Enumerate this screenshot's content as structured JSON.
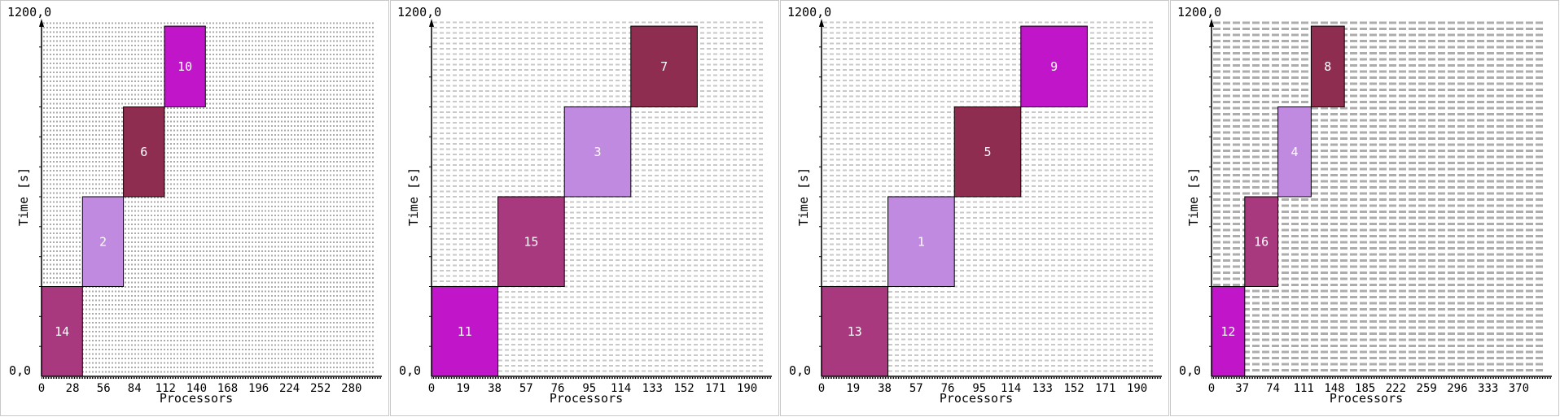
{
  "chart_data": [
    {
      "type": "gantt",
      "xlabel": "Processors",
      "ylabel": "Time [s]",
      "y_min_label": "0,0",
      "y_max_label": "1200,0",
      "xlim": [
        0,
        300
      ],
      "ylim": [
        0,
        1200
      ],
      "x_ticks": [
        0,
        28,
        56,
        84,
        112,
        140,
        168,
        196,
        224,
        252,
        280
      ],
      "grid": "horizontal-dashed-dense",
      "tasks": [
        {
          "label": "14",
          "x_start": 0,
          "x_end": 37,
          "y_start": 0,
          "y_end": 300,
          "color": "#a8397e"
        },
        {
          "label": "2",
          "x_start": 37,
          "x_end": 74,
          "y_start": 300,
          "y_end": 600,
          "color": "#c08ae0"
        },
        {
          "label": "6",
          "x_start": 74,
          "x_end": 111,
          "y_start": 600,
          "y_end": 900,
          "color": "#8e2d4f"
        },
        {
          "label": "10",
          "x_start": 111,
          "x_end": 148,
          "y_start": 900,
          "y_end": 1170,
          "color": "#c015c8"
        }
      ]
    },
    {
      "type": "gantt",
      "xlabel": "Processors",
      "ylabel": "Time [s]",
      "y_min_label": "0,0",
      "y_max_label": "1200,0",
      "xlim": [
        0,
        200
      ],
      "ylim": [
        0,
        1200
      ],
      "x_ticks": [
        0,
        19,
        38,
        57,
        76,
        95,
        114,
        133,
        152,
        171,
        190
      ],
      "grid": "horizontal-dashed",
      "tasks": [
        {
          "label": "11",
          "x_start": 0,
          "x_end": 40,
          "y_start": 0,
          "y_end": 300,
          "color": "#c015c8"
        },
        {
          "label": "15",
          "x_start": 40,
          "x_end": 80,
          "y_start": 300,
          "y_end": 600,
          "color": "#a8397e"
        },
        {
          "label": "3",
          "x_start": 80,
          "x_end": 120,
          "y_start": 600,
          "y_end": 900,
          "color": "#c08ae0"
        },
        {
          "label": "7",
          "x_start": 120,
          "x_end": 160,
          "y_start": 900,
          "y_end": 1170,
          "color": "#8e2d4f"
        }
      ]
    },
    {
      "type": "gantt",
      "xlabel": "Processors",
      "ylabel": "Time [s]",
      "y_min_label": "0,0",
      "y_max_label": "1200,0",
      "xlim": [
        0,
        200
      ],
      "ylim": [
        0,
        1200
      ],
      "x_ticks": [
        0,
        19,
        38,
        57,
        76,
        95,
        114,
        133,
        152,
        171,
        190
      ],
      "grid": "horizontal-dashed",
      "tasks": [
        {
          "label": "13",
          "x_start": 0,
          "x_end": 40,
          "y_start": 0,
          "y_end": 300,
          "color": "#a8397e"
        },
        {
          "label": "1",
          "x_start": 40,
          "x_end": 80,
          "y_start": 300,
          "y_end": 600,
          "color": "#c08ae0"
        },
        {
          "label": "5",
          "x_start": 80,
          "x_end": 120,
          "y_start": 600,
          "y_end": 900,
          "color": "#8e2d4f"
        },
        {
          "label": "9",
          "x_start": 120,
          "x_end": 160,
          "y_start": 900,
          "y_end": 1170,
          "color": "#c015c8"
        }
      ]
    },
    {
      "type": "gantt",
      "xlabel": "Processors",
      "ylabel": "Time [s]",
      "y_min_label": "0,0",
      "y_max_label": "1200,0",
      "xlim": [
        0,
        400
      ],
      "ylim": [
        0,
        1200
      ],
      "x_ticks": [
        0,
        37,
        74,
        111,
        148,
        185,
        222,
        259,
        296,
        333,
        370
      ],
      "grid": "horizontal-dashed-heavy",
      "tasks": [
        {
          "label": "12",
          "x_start": 0,
          "x_end": 40,
          "y_start": 0,
          "y_end": 300,
          "color": "#c015c8"
        },
        {
          "label": "16",
          "x_start": 40,
          "x_end": 80,
          "y_start": 300,
          "y_end": 600,
          "color": "#a8397e"
        },
        {
          "label": "4",
          "x_start": 80,
          "x_end": 120,
          "y_start": 600,
          "y_end": 900,
          "color": "#c08ae0"
        },
        {
          "label": "8",
          "x_start": 120,
          "x_end": 160,
          "y_start": 900,
          "y_end": 1170,
          "color": "#8e2d4f"
        }
      ]
    }
  ]
}
